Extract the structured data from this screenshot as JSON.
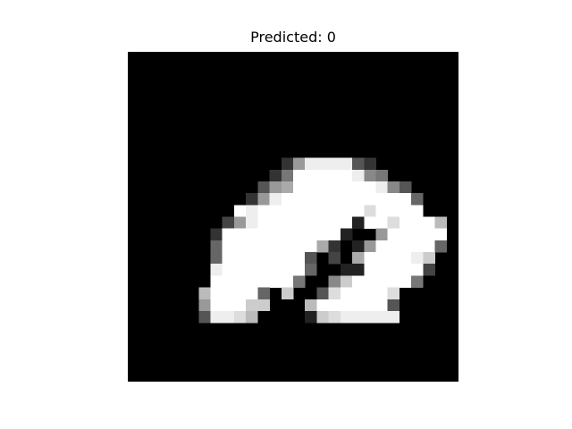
{
  "figure": {
    "title": "Predicted: 0"
  },
  "digit_image": {
    "description_colormap": "gray",
    "rows": 28,
    "cols": 28,
    "pixels": [
      "0000000000000000000000000000",
      "0000000000000000000000000000",
      "0000000000000000000000000000",
      "0000000000000000000000000000",
      "0000000000000000000000000000",
      "0000000000000000000000000000",
      "0000000000000000000000000000",
      "0000000000000000000000000000",
      "0000000000000000000000000000",
      "000000000000039eeee530000000",
      "00000000000037fffffe87000000",
      "0000000000059afffffffe850000",
      "000000000039efffffffffff6000",
      "000000000fefffffffffdffff000",
      "0000000049effffffff2ffdfffb0",
      "00000003ffffffffff2009fffff0",
      "00000006ffffffffa3029fffff60",
      "00000006fffffff5040affffec00",
      "0000000efffffff60022fffff400",
      "0000000fffffff7008cfffff7000",
      "000000bffff60c005dffffd00000",
      "0000009fffcc000bffffff500000",
      "0000005eedb00002cdeeeee00000",
      "0000000000000000000000000000",
      "0000000000000000000000000000",
      "0000000000000000000000000000",
      "0000000000000000000000000000",
      "0000000000000000000000000000"
    ]
  }
}
